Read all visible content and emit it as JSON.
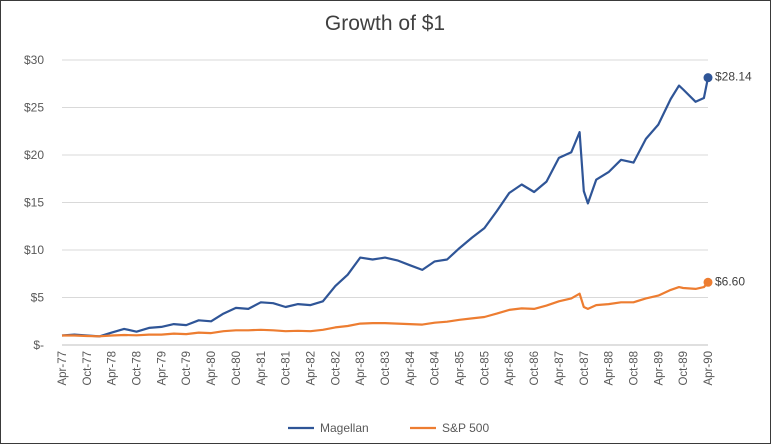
{
  "chart_data": {
    "type": "line",
    "title": "Growth of $1",
    "xlabel": "",
    "ylabel": "",
    "y_ticks": [
      "$-",
      "$5",
      "$10",
      "$15",
      "$20",
      "$25",
      "$30"
    ],
    "ylim": [
      0,
      30
    ],
    "x_ticks": [
      "Apr-77",
      "Oct-77",
      "Apr-78",
      "Oct-78",
      "Apr-79",
      "Oct-79",
      "Apr-80",
      "Oct-80",
      "Apr-81",
      "Oct-81",
      "Apr-82",
      "Oct-82",
      "Apr-83",
      "Oct-83",
      "Apr-84",
      "Oct-84",
      "Apr-85",
      "Oct-85",
      "Apr-86",
      "Oct-86",
      "Apr-87",
      "Oct-87",
      "Apr-88",
      "Oct-88",
      "Apr-89",
      "Oct-89",
      "Apr-90"
    ],
    "grid": "horizontal",
    "legend_position": "bottom",
    "series": [
      {
        "name": "Magellan",
        "color": "#2f5597",
        "end_label": "$28.14",
        "x": [
          "Apr-77",
          "Jul-77",
          "Oct-77",
          "Jan-78",
          "Apr-78",
          "Jul-78",
          "Oct-78",
          "Jan-79",
          "Apr-79",
          "Jul-79",
          "Oct-79",
          "Jan-80",
          "Apr-80",
          "Jul-80",
          "Oct-80",
          "Jan-81",
          "Apr-81",
          "Jul-81",
          "Oct-81",
          "Jan-82",
          "Apr-82",
          "Jul-82",
          "Oct-82",
          "Jan-83",
          "Apr-83",
          "Jul-83",
          "Oct-83",
          "Jan-84",
          "Apr-84",
          "Jul-84",
          "Oct-84",
          "Jan-85",
          "Apr-85",
          "Jul-85",
          "Oct-85",
          "Jan-86",
          "Apr-86",
          "Jul-86",
          "Oct-86",
          "Jan-87",
          "Apr-87",
          "Jul-87",
          "Sep-87",
          "Oct-87",
          "Nov-87",
          "Jan-88",
          "Apr-88",
          "Jul-88",
          "Oct-88",
          "Jan-89",
          "Apr-89",
          "Jul-89",
          "Sep-89",
          "Oct-89",
          "Jan-90",
          "Mar-90",
          "Apr-90"
        ],
        "values": [
          1.0,
          1.1,
          1.0,
          0.9,
          1.3,
          1.7,
          1.4,
          1.8,
          1.9,
          2.2,
          2.1,
          2.6,
          2.5,
          3.3,
          3.9,
          3.8,
          4.5,
          4.4,
          4.0,
          4.3,
          4.2,
          4.6,
          6.2,
          7.4,
          9.2,
          9.0,
          9.2,
          8.9,
          8.4,
          7.9,
          8.8,
          9.0,
          10.2,
          11.3,
          12.3,
          14.1,
          16.0,
          16.9,
          16.1,
          17.2,
          19.7,
          20.3,
          22.4,
          16.2,
          14.9,
          17.4,
          18.2,
          19.5,
          19.2,
          21.7,
          23.2,
          25.9,
          27.3,
          26.9,
          25.6,
          26.0,
          28.14
        ]
      },
      {
        "name": "S&P 500",
        "color": "#ed7d31",
        "end_label": "$6.60",
        "x": [
          "Apr-77",
          "Jul-77",
          "Oct-77",
          "Jan-78",
          "Apr-78",
          "Jul-78",
          "Oct-78",
          "Jan-79",
          "Apr-79",
          "Jul-79",
          "Oct-79",
          "Jan-80",
          "Apr-80",
          "Jul-80",
          "Oct-80",
          "Jan-81",
          "Apr-81",
          "Jul-81",
          "Oct-81",
          "Jan-82",
          "Apr-82",
          "Jul-82",
          "Oct-82",
          "Jan-83",
          "Apr-83",
          "Jul-83",
          "Oct-83",
          "Jan-84",
          "Apr-84",
          "Jul-84",
          "Oct-84",
          "Jan-85",
          "Apr-85",
          "Jul-85",
          "Oct-85",
          "Jan-86",
          "Apr-86",
          "Jul-86",
          "Oct-86",
          "Jan-87",
          "Apr-87",
          "Jul-87",
          "Sep-87",
          "Oct-87",
          "Nov-87",
          "Jan-88",
          "Apr-88",
          "Jul-88",
          "Oct-88",
          "Jan-89",
          "Apr-89",
          "Jul-89",
          "Sep-89",
          "Oct-89",
          "Jan-90",
          "Mar-90",
          "Apr-90"
        ],
        "values": [
          1.0,
          1.0,
          0.95,
          0.92,
          1.0,
          1.05,
          1.02,
          1.1,
          1.1,
          1.2,
          1.15,
          1.3,
          1.25,
          1.45,
          1.55,
          1.55,
          1.6,
          1.55,
          1.45,
          1.5,
          1.45,
          1.6,
          1.85,
          2.0,
          2.25,
          2.3,
          2.3,
          2.25,
          2.2,
          2.15,
          2.35,
          2.45,
          2.65,
          2.8,
          2.95,
          3.3,
          3.7,
          3.85,
          3.8,
          4.15,
          4.6,
          4.9,
          5.4,
          4.0,
          3.8,
          4.2,
          4.3,
          4.5,
          4.5,
          4.9,
          5.2,
          5.8,
          6.1,
          6.0,
          5.9,
          6.1,
          6.6
        ]
      }
    ]
  }
}
